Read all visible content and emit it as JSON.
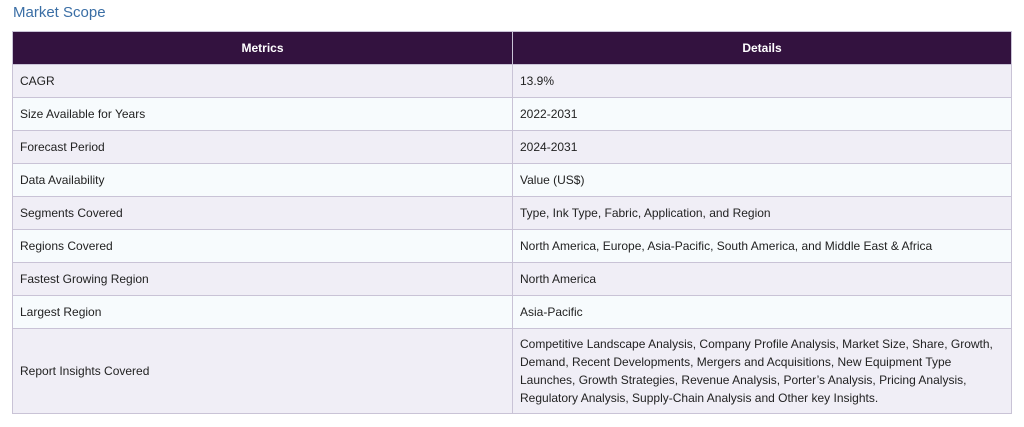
{
  "title": "Market Scope",
  "table": {
    "headers": [
      "Metrics",
      "Details"
    ],
    "rows": [
      {
        "metric": "CAGR",
        "detail": "13.9%"
      },
      {
        "metric": "Size Available for Years",
        "detail": "2022-2031"
      },
      {
        "metric": "Forecast Period",
        "detail": "2024-2031"
      },
      {
        "metric": "Data Availability",
        "detail": "Value (US$)"
      },
      {
        "metric": "Segments Covered",
        "detail": "Type, Ink Type, Fabric, Application, and Region"
      },
      {
        "metric": "Regions Covered",
        "detail": "North America, Europe, Asia-Pacific, South America, and Middle East & Africa"
      },
      {
        "metric": "Fastest Growing Region",
        "detail": "North America"
      },
      {
        "metric": "Largest Region",
        "detail": "Asia-Pacific"
      },
      {
        "metric": "Report Insights Covered",
        "detail": "Competitive Landscape Analysis, Company Profile Analysis, Market Size, Share, Growth, Demand, Recent Developments, Mergers and Acquisitions, New Equipment Type Launches, Growth Strategies, Revenue Analysis, Porter’s Analysis, Pricing Analysis, Regulatory Analysis, Supply-Chain Analysis and Other key Insights."
      }
    ]
  }
}
